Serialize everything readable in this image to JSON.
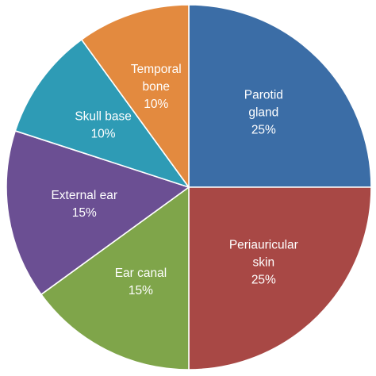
{
  "chart_data": {
    "type": "pie",
    "slices": [
      {
        "label_lines": [
          "Parotid",
          "gland"
        ],
        "percent_label": "25%",
        "value": 25,
        "color": "#3B6DA6"
      },
      {
        "label_lines": [
          "Periauricular",
          "skin"
        ],
        "percent_label": "25%",
        "value": 25,
        "color": "#A84845"
      },
      {
        "label_lines": [
          "Ear canal"
        ],
        "percent_label": "15%",
        "value": 15,
        "color": "#7FA54A"
      },
      {
        "label_lines": [
          "External ear"
        ],
        "percent_label": "15%",
        "value": 15,
        "color": "#6B4F93"
      },
      {
        "label_lines": [
          "Skull base"
        ],
        "percent_label": "10%",
        "value": 10,
        "color": "#2E9BB5"
      },
      {
        "label_lines": [
          "Temporal",
          "bone"
        ],
        "percent_label": "10%",
        "value": 10,
        "color": "#E38A3F"
      }
    ],
    "start_angle_deg": 0,
    "direction": "clockwise",
    "legend": "none"
  }
}
